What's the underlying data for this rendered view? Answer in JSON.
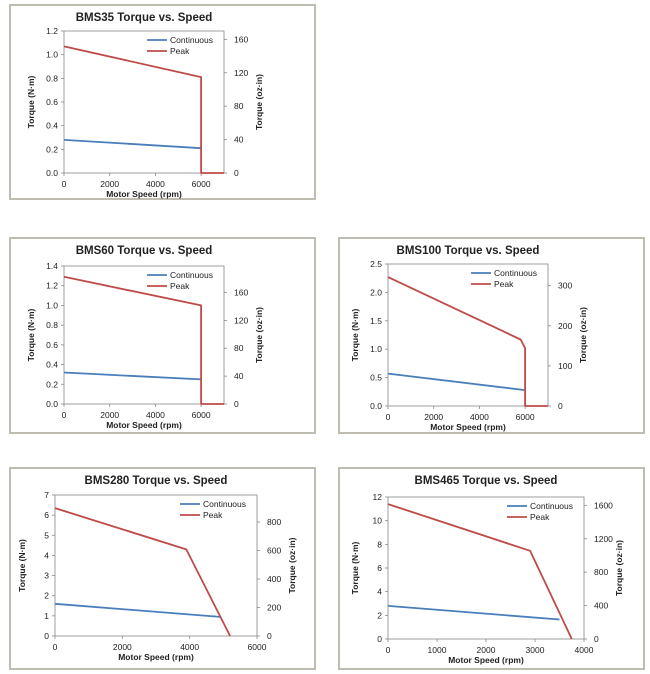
{
  "chart_data": [
    {
      "type": "line",
      "title": "BMS35 Torque vs. Speed",
      "xlabel": "Motor Speed (rpm)",
      "ylabel": "Torque (N·m)",
      "y2label": "Torque (oz·in)",
      "xlim": [
        0,
        7000
      ],
      "xticks": [
        "0",
        "2000",
        "4000",
        "6000"
      ],
      "ylim": [
        0,
        1.2
      ],
      "yticks": [
        "0.0",
        "0.2",
        "0.4",
        "0.6",
        "0.8",
        "1.0",
        "1.2"
      ],
      "y2lim": [
        0,
        170
      ],
      "y2ticks": [
        "0",
        "40",
        "80",
        "120",
        "160"
      ],
      "legend": "top-right",
      "series": [
        {
          "name": "Continuous",
          "color": "#4a7ebb",
          "x": [
            0,
            6000
          ],
          "y": [
            0.28,
            0.21
          ]
        },
        {
          "name": "Peak",
          "color": "#be4b48",
          "x": [
            0,
            6000,
            6000,
            7000
          ],
          "y": [
            1.07,
            0.81,
            0.0,
            0.0
          ]
        }
      ]
    },
    {
      "type": "line",
      "title": "BMS60 Torque vs. Speed",
      "xlabel": "Motor Speed (rpm)",
      "ylabel": "Torque (N·m)",
      "y2label": "Torque (oz·in)",
      "xlim": [
        0,
        7000
      ],
      "xticks": [
        "0",
        "2000",
        "4000",
        "6000"
      ],
      "ylim": [
        0,
        1.4
      ],
      "yticks": [
        "0.0",
        "0.2",
        "0.4",
        "0.6",
        "0.8",
        "1.0",
        "1.2",
        "1.4"
      ],
      "y2lim": [
        0,
        198
      ],
      "y2ticks": [
        "0",
        "40",
        "80",
        "120",
        "160"
      ],
      "legend": "top-right",
      "series": [
        {
          "name": "Continuous",
          "color": "#4a7ebb",
          "x": [
            0,
            6000
          ],
          "y": [
            0.32,
            0.25
          ]
        },
        {
          "name": "Peak",
          "color": "#be4b48",
          "x": [
            0,
            6000,
            6000,
            7000
          ],
          "y": [
            1.29,
            1.0,
            0.0,
            0.0
          ]
        }
      ]
    },
    {
      "type": "line",
      "title": "BMS100 Torque vs. Speed",
      "xlabel": "Motor Speed (rpm)",
      "ylabel": "Torque (N·m)",
      "y2label": "Torque (oz·in)",
      "xlim": [
        0,
        7000
      ],
      "xticks": [
        "0",
        "2000",
        "4000",
        "6000"
      ],
      "ylim": [
        0,
        2.5
      ],
      "yticks": [
        "0.0",
        "0.5",
        "1.0",
        "1.5",
        "2.0",
        "2.5"
      ],
      "y2lim": [
        0,
        354
      ],
      "y2ticks": [
        "0",
        "100",
        "200",
        "300"
      ],
      "legend": "top-right",
      "series": [
        {
          "name": "Continuous",
          "color": "#4a7ebb",
          "x": [
            0,
            6000
          ],
          "y": [
            0.57,
            0.28
          ]
        },
        {
          "name": "Peak",
          "color": "#be4b48",
          "x": [
            0,
            5800,
            6000,
            6000,
            7000
          ],
          "y": [
            2.27,
            1.17,
            1.02,
            0.0,
            0.0
          ]
        }
      ]
    },
    {
      "type": "line",
      "title": "BMS280 Torque vs. Speed",
      "xlabel": "Motor Speed (rpm)",
      "ylabel": "Torque (N·m)",
      "y2label": "Torque (oz·in)",
      "xlim": [
        0,
        6000
      ],
      "xticks": [
        "0",
        "2000",
        "4000",
        "6000"
      ],
      "ylim": [
        0,
        7
      ],
      "yticks": [
        "0",
        "1",
        "2",
        "3",
        "4",
        "5",
        "6",
        "7"
      ],
      "y2lim": [
        0,
        990
      ],
      "y2ticks": [
        "0",
        "200",
        "400",
        "600",
        "800"
      ],
      "legend": "top-right",
      "series": [
        {
          "name": "Continuous",
          "color": "#4a7ebb",
          "x": [
            0,
            4900
          ],
          "y": [
            1.6,
            0.95
          ]
        },
        {
          "name": "Peak",
          "color": "#be4b48",
          "x": [
            0,
            3900,
            5200
          ],
          "y": [
            6.35,
            4.3,
            0.0
          ]
        }
      ]
    },
    {
      "type": "line",
      "title": "BMS465 Torque vs. Speed",
      "xlabel": "Motor Speed (rpm)",
      "ylabel": "Torque (N·m)",
      "y2label": "Torque (oz·in)",
      "xlim": [
        0,
        4000
      ],
      "xticks": [
        "0",
        "1000",
        "2000",
        "3000",
        "4000"
      ],
      "ylim": [
        0,
        12
      ],
      "yticks": [
        "0",
        "2",
        "4",
        "6",
        "8",
        "10",
        "12"
      ],
      "y2lim": [
        0,
        1700
      ],
      "y2ticks": [
        "0",
        "400",
        "800",
        "1200",
        "1600"
      ],
      "legend": "top-right",
      "series": [
        {
          "name": "Continuous",
          "color": "#4a7ebb",
          "x": [
            0,
            3500
          ],
          "y": [
            2.8,
            1.65
          ]
        },
        {
          "name": "Peak",
          "color": "#be4b48",
          "x": [
            0,
            2900,
            3750
          ],
          "y": [
            11.4,
            7.45,
            0.0
          ]
        }
      ]
    }
  ]
}
